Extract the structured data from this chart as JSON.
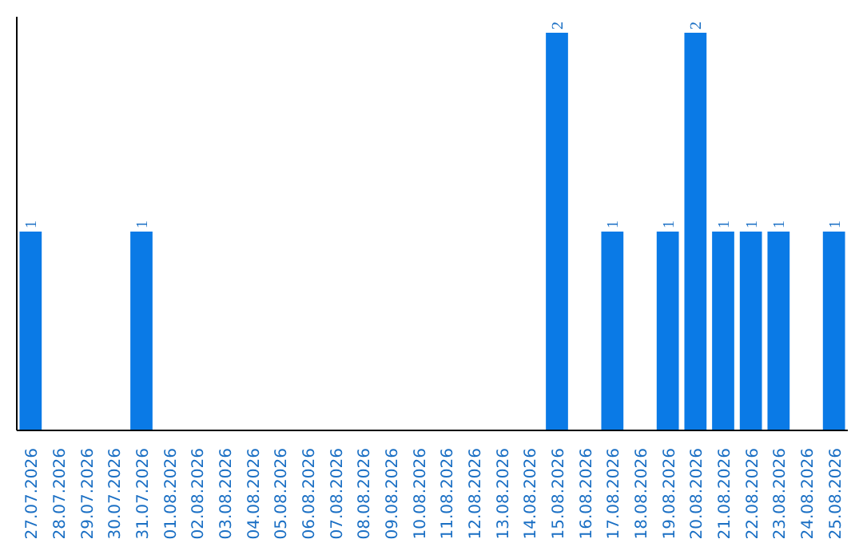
{
  "chart_data": {
    "type": "bar",
    "categories": [
      "27.07.2026",
      "28.07.2026",
      "29.07.2026",
      "30.07.2026",
      "31.07.2026",
      "01.08.2026",
      "02.08.2026",
      "03.08.2026",
      "04.08.2026",
      "05.08.2026",
      "06.08.2026",
      "07.08.2026",
      "08.08.2026",
      "09.08.2026",
      "10.08.2026",
      "11.08.2026",
      "12.08.2026",
      "13.08.2026",
      "14.08.2026",
      "15.08.2026",
      "16.08.2026",
      "17.08.2026",
      "18.08.2026",
      "19.08.2026",
      "20.08.2026",
      "21.08.2026",
      "22.08.2026",
      "23.08.2026",
      "24.08.2026",
      "25.08.2026"
    ],
    "values": [
      1,
      0,
      0,
      0,
      1,
      0,
      0,
      0,
      0,
      0,
      0,
      0,
      0,
      0,
      0,
      0,
      0,
      0,
      0,
      2,
      0,
      1,
      0,
      1,
      2,
      1,
      1,
      1,
      0,
      1
    ],
    "value_labels": [
      "1",
      null,
      null,
      null,
      "1",
      null,
      null,
      null,
      null,
      null,
      null,
      null,
      null,
      null,
      null,
      null,
      null,
      null,
      null,
      "2",
      null,
      "1",
      null,
      "1",
      "2",
      "1",
      "1",
      "1",
      null,
      "1"
    ],
    "color": "#0a7ae6",
    "grid": false,
    "tick_labels": "x"
  }
}
